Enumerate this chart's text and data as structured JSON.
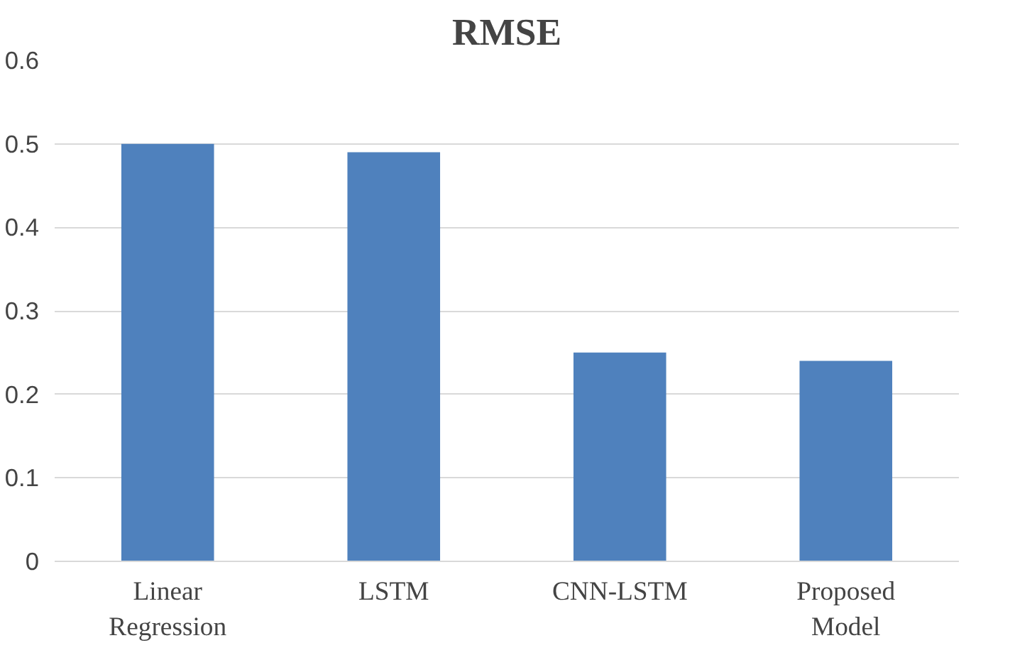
{
  "chart_data": {
    "type": "bar",
    "title": "RMSE",
    "categories": [
      "Linear Regression",
      "LSTM",
      "CNN-LSTM",
      "Proposed Model"
    ],
    "values": [
      0.5,
      0.49,
      0.25,
      0.24
    ],
    "color": "#4f81bd",
    "ylim": [
      0,
      0.6
    ],
    "yticks": [
      0,
      0.1,
      0.2,
      0.3,
      0.4,
      0.5,
      0.6
    ],
    "grid": "y"
  }
}
